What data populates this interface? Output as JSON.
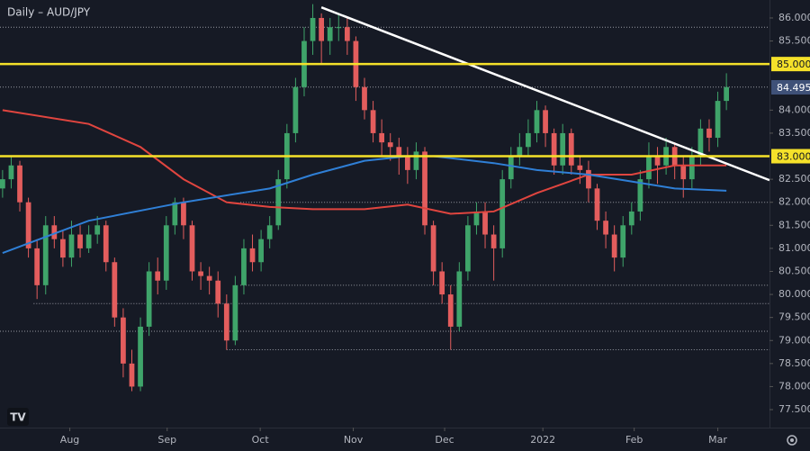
{
  "chart_data": {
    "type": "candlestick",
    "title": "Daily – AUD/JPY",
    "up_color": "#3fa46a",
    "down_color": "#e35d5d",
    "xlim": [
      -0.3,
      89
    ],
    "ylim": [
      77.11,
      86.39
    ],
    "xticks": [
      {
        "value": 7.8,
        "label": "Aug"
      },
      {
        "value": 19.1,
        "label": "Sep"
      },
      {
        "value": 29.9,
        "label": "Oct"
      },
      {
        "value": 40.7,
        "label": "Nov"
      },
      {
        "value": 51.3,
        "label": "Dec"
      },
      {
        "value": 62.7,
        "label": "2022"
      },
      {
        "value": 73.3,
        "label": "Feb"
      },
      {
        "value": 83,
        "label": "Mar"
      }
    ],
    "yticks": [
      {
        "value": 86,
        "label": "86.000"
      },
      {
        "value": 85.5,
        "label": "85.500"
      },
      {
        "value": 84,
        "label": "84.000"
      },
      {
        "value": 83.5,
        "label": "83.500"
      },
      {
        "value": 82.5,
        "label": "82.500"
      },
      {
        "value": 82,
        "label": "82.000"
      },
      {
        "value": 81.5,
        "label": "81.500"
      },
      {
        "value": 81,
        "label": "81.000"
      },
      {
        "value": 80.5,
        "label": "80.500"
      },
      {
        "value": 80,
        "label": "80.000"
      },
      {
        "value": 79.5,
        "label": "79.500"
      },
      {
        "value": 79,
        "label": "79.000"
      },
      {
        "value": 78.5,
        "label": "78.500"
      },
      {
        "value": 78,
        "label": "78.000"
      },
      {
        "value": 77.5,
        "label": "77.500"
      }
    ],
    "open": [
      82.3,
      82.5,
      82.8,
      82.0,
      81.0,
      80.2,
      81.5,
      81.2,
      80.8,
      81.3,
      81.0,
      81.3,
      81.5,
      80.7,
      79.5,
      78.5,
      78.0,
      79.3,
      80.5,
      80.3,
      81.5,
      82.0,
      81.5,
      80.5,
      80.4,
      80.3,
      79.8,
      79.0,
      80.2,
      81.0,
      80.7,
      81.2,
      81.5,
      82.5,
      83.5,
      84.5,
      85.5,
      86.0,
      85.5,
      85.8,
      85.8,
      85.5,
      84.5,
      84.0,
      83.5,
      83.3,
      83.2,
      83.0,
      82.7,
      83.1,
      81.5,
      80.5,
      80.0,
      79.3,
      80.5,
      81.5,
      81.8,
      81.3,
      81.0,
      82.5,
      83.0,
      83.2,
      83.5,
      84.0,
      83.5,
      82.8,
      83.5,
      82.8,
      82.7,
      82.3,
      81.6,
      81.3,
      80.8,
      81.5,
      81.8,
      82.5,
      83.0,
      82.8,
      83.2,
      82.8,
      82.5,
      83.0,
      83.6,
      83.4,
      84.2
    ],
    "high": [
      82.7,
      83.0,
      82.9,
      82.1,
      81.2,
      81.7,
      81.7,
      81.4,
      81.6,
      81.5,
      81.5,
      81.7,
      81.6,
      80.8,
      79.7,
      78.8,
      79.5,
      80.7,
      80.8,
      81.7,
      82.1,
      82.1,
      81.6,
      80.7,
      80.6,
      80.5,
      80.0,
      80.4,
      81.2,
      81.3,
      81.4,
      81.7,
      82.7,
      83.7,
      84.7,
      85.8,
      86.3,
      86.1,
      86.0,
      86.1,
      86.0,
      85.6,
      84.7,
      84.2,
      83.8,
      83.5,
      83.4,
      83.2,
      83.3,
      83.2,
      81.6,
      80.7,
      80.2,
      80.7,
      81.7,
      82.0,
      82.0,
      81.5,
      82.7,
      83.2,
      83.5,
      83.8,
      84.2,
      84.1,
      83.6,
      83.7,
      83.6,
      83.0,
      82.9,
      82.4,
      81.8,
      81.5,
      81.7,
      82.0,
      82.7,
      83.3,
      83.2,
      83.4,
      83.3,
      83.0,
      83.2,
      83.8,
      83.8,
      84.4,
      84.8
    ],
    "low": [
      82.1,
      82.3,
      81.8,
      80.8,
      79.9,
      80.0,
      81.0,
      80.6,
      80.6,
      80.8,
      80.9,
      81.1,
      80.5,
      79.3,
      78.2,
      77.9,
      77.9,
      79.1,
      80.0,
      80.1,
      81.3,
      81.2,
      80.3,
      80.1,
      80.0,
      79.5,
      78.8,
      78.9,
      80.0,
      80.5,
      80.5,
      81.0,
      81.4,
      82.3,
      83.3,
      84.3,
      85.2,
      85.0,
      85.2,
      85.5,
      85.2,
      84.2,
      83.8,
      83.3,
      83.0,
      82.9,
      82.6,
      82.4,
      82.5,
      81.3,
      80.2,
      79.8,
      78.8,
      79.2,
      80.3,
      81.3,
      81.0,
      80.3,
      80.8,
      82.3,
      82.8,
      83.0,
      83.3,
      83.2,
      82.6,
      82.6,
      82.6,
      82.4,
      82.0,
      81.4,
      81.0,
      80.5,
      80.6,
      81.3,
      81.6,
      82.3,
      82.4,
      82.6,
      82.5,
      82.1,
      82.3,
      82.8,
      83.1,
      83.2,
      84.0
    ],
    "close": [
      82.5,
      82.8,
      82.0,
      81.0,
      80.2,
      81.5,
      81.2,
      80.8,
      81.3,
      81.0,
      81.3,
      81.5,
      80.7,
      79.5,
      78.5,
      78.0,
      79.3,
      80.5,
      80.3,
      81.5,
      82.0,
      81.5,
      80.5,
      80.4,
      80.3,
      79.8,
      79.0,
      80.2,
      81.0,
      80.7,
      81.2,
      81.5,
      82.5,
      83.5,
      84.5,
      85.5,
      86.0,
      85.5,
      85.8,
      85.8,
      85.5,
      84.5,
      84.0,
      83.5,
      83.3,
      83.2,
      83.0,
      82.7,
      83.1,
      81.5,
      80.5,
      80.0,
      79.3,
      80.5,
      81.5,
      81.8,
      81.3,
      81.0,
      82.5,
      83.0,
      83.2,
      83.5,
      84.0,
      83.5,
      82.8,
      83.5,
      82.8,
      82.7,
      82.3,
      81.6,
      81.3,
      80.8,
      81.5,
      81.8,
      82.5,
      83.0,
      82.8,
      83.2,
      82.8,
      82.5,
      83.0,
      83.6,
      83.4,
      84.2,
      84.5
    ],
    "lines": [
      {
        "color": "#e0453f",
        "x": [
          0,
          10,
          16,
          21,
          26,
          31,
          36,
          42,
          47,
          52,
          57,
          62,
          68,
          73,
          78,
          84
        ],
        "values": [
          84.0,
          83.7,
          83.2,
          82.5,
          82.0,
          81.9,
          81.85,
          81.85,
          81.95,
          81.75,
          81.8,
          82.2,
          82.6,
          82.6,
          82.8,
          82.8
        ]
      },
      {
        "color": "#2f7fd6",
        "x": [
          0,
          10,
          21,
          31,
          36,
          42,
          47,
          50,
          57,
          62,
          68,
          73,
          78,
          84
        ],
        "values": [
          80.9,
          81.6,
          82.0,
          82.3,
          82.6,
          82.9,
          83.0,
          83.0,
          82.85,
          82.7,
          82.6,
          82.45,
          82.3,
          82.25
        ]
      },
      {
        "color": "#ffffff",
        "x": [
          37,
          89
        ],
        "values": [
          86.23,
          82.48
        ]
      }
    ],
    "dotted_levels": [
      {
        "x": [
          -0.3,
          89
        ],
        "value": 85.8
      },
      {
        "x": [
          -0.3,
          89
        ],
        "value": 84.5
      },
      {
        "x": [
          27.6,
          89
        ],
        "value": 82.0
      },
      {
        "x": [
          27.6,
          89
        ],
        "value": 80.2
      },
      {
        "x": [
          3.6,
          89
        ],
        "value": 79.8
      },
      {
        "x": [
          -0.3,
          89
        ],
        "value": 79.2
      },
      {
        "x": [
          26,
          89
        ],
        "value": 78.8
      }
    ],
    "levels": [
      {
        "value": 85,
        "label": "85.000"
      },
      {
        "value": 83,
        "label": "83.000"
      }
    ],
    "level_color": "#f5e12a",
    "last_price": {
      "value": 84.495,
      "label": "84.495"
    }
  }
}
